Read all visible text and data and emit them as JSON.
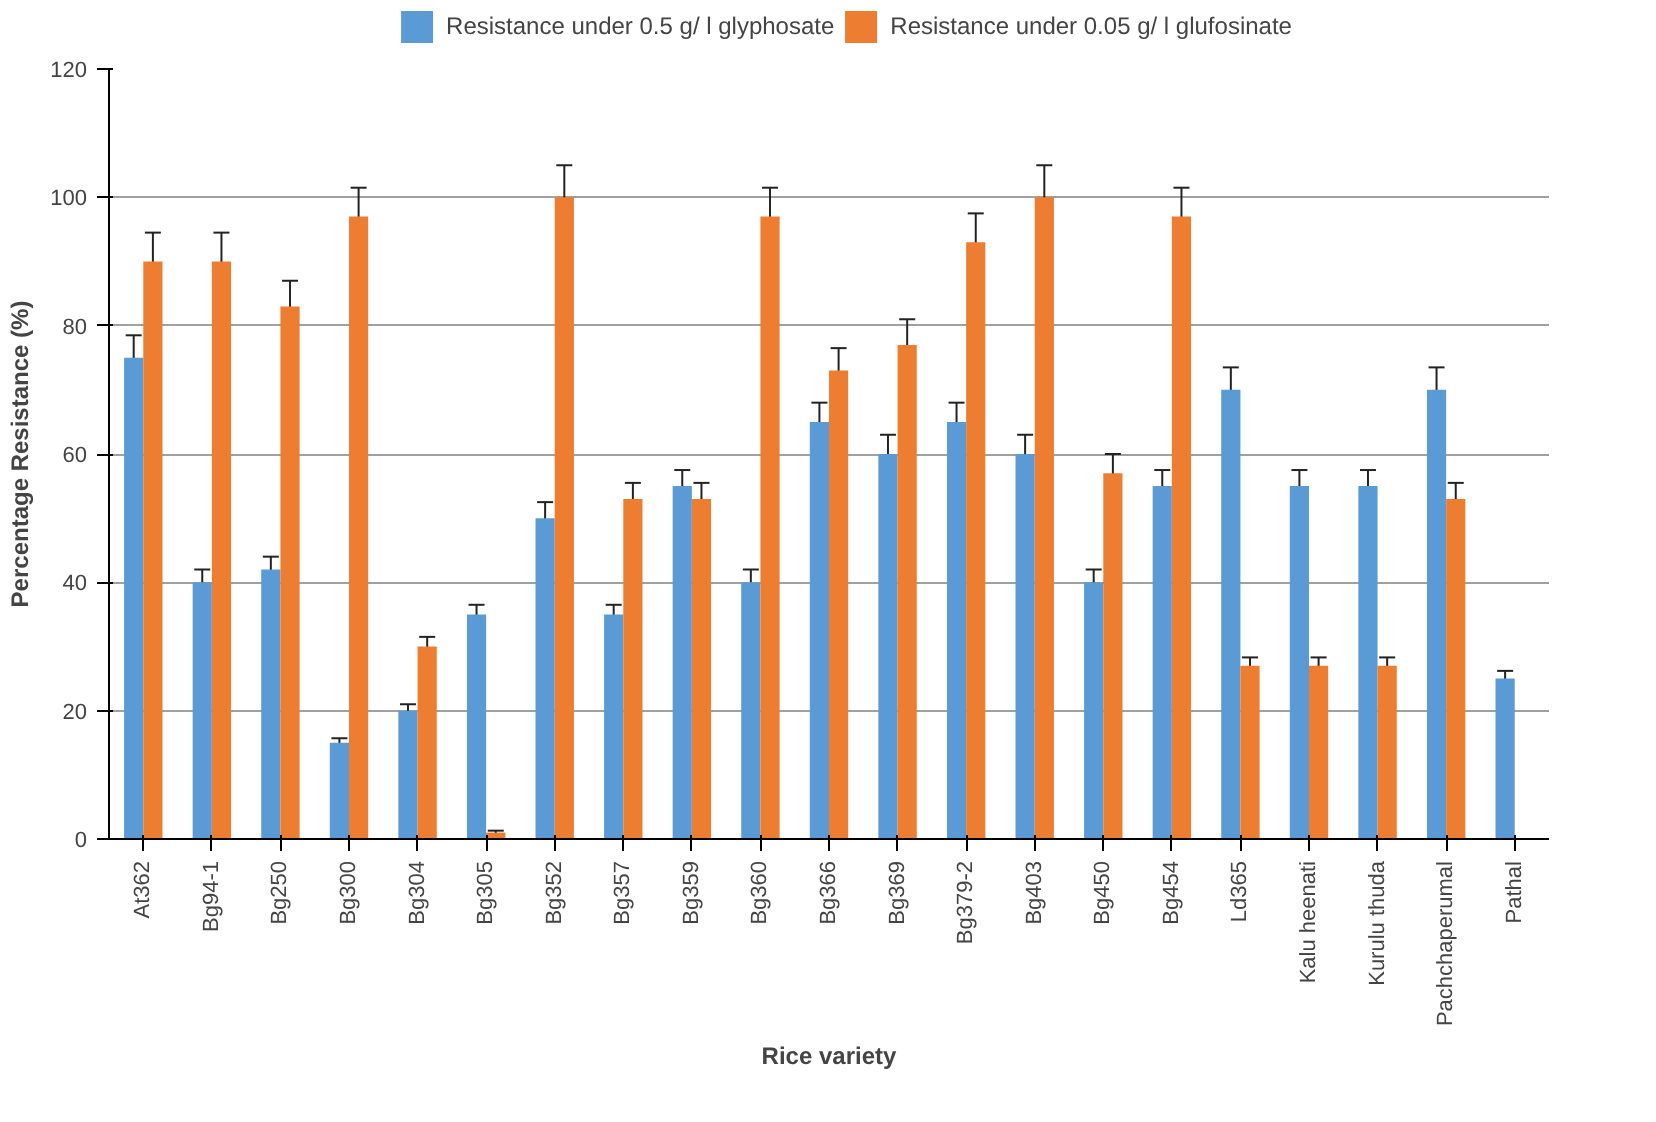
{
  "chart_data": {
    "type": "bar",
    "xlabel": "Rice variety",
    "ylabel": "Percentage Resistance (%)",
    "categories": [
      "At362",
      "Bg94-1",
      "Bg250",
      "Bg300",
      "Bg304",
      "Bg305",
      "Bg352",
      "Bg357",
      "Bg359",
      "Bg360",
      "Bg366",
      "Bg369",
      "Bg379-2",
      "Bg403",
      "Bg450",
      "Bg454",
      "Ld365",
      "Kalu heenati",
      "Kurulu thuda",
      "Pachchaperumal",
      "Pathal"
    ],
    "series": [
      {
        "name": "Resistance under 0.5 g/ l glyphosate",
        "color": "#5b9bd5",
        "values": [
          75,
          40,
          42,
          15,
          20,
          35,
          50,
          35,
          55,
          40,
          65,
          60,
          65,
          60,
          40,
          55,
          70,
          55,
          55,
          70,
          25
        ],
        "errors": [
          3.5,
          2,
          2,
          0.7,
          1,
          1.5,
          2.5,
          1.5,
          2.5,
          2,
          3,
          3,
          3,
          3,
          2,
          2.5,
          3.5,
          2.5,
          2.5,
          3.5,
          1.2
        ]
      },
      {
        "name": "Resistance under 0.05 g/ l glufosinate",
        "color": "#ed7d31",
        "values": [
          90,
          90,
          83,
          97,
          30,
          1,
          100,
          53,
          53,
          97,
          73,
          77,
          93,
          100,
          57,
          97,
          27,
          27,
          27,
          53,
          null
        ],
        "errors": [
          4.5,
          4.5,
          4,
          4.5,
          1.5,
          0.3,
          5,
          2.5,
          2.5,
          4.5,
          3.5,
          4,
          4.5,
          5,
          3,
          4.5,
          1.3,
          1.3,
          1.3,
          2.5,
          null
        ]
      }
    ],
    "ylim": [
      0,
      120
    ],
    "yticks": [
      0,
      20,
      40,
      60,
      80,
      100,
      120
    ],
    "grid": "y",
    "legend": "top"
  }
}
